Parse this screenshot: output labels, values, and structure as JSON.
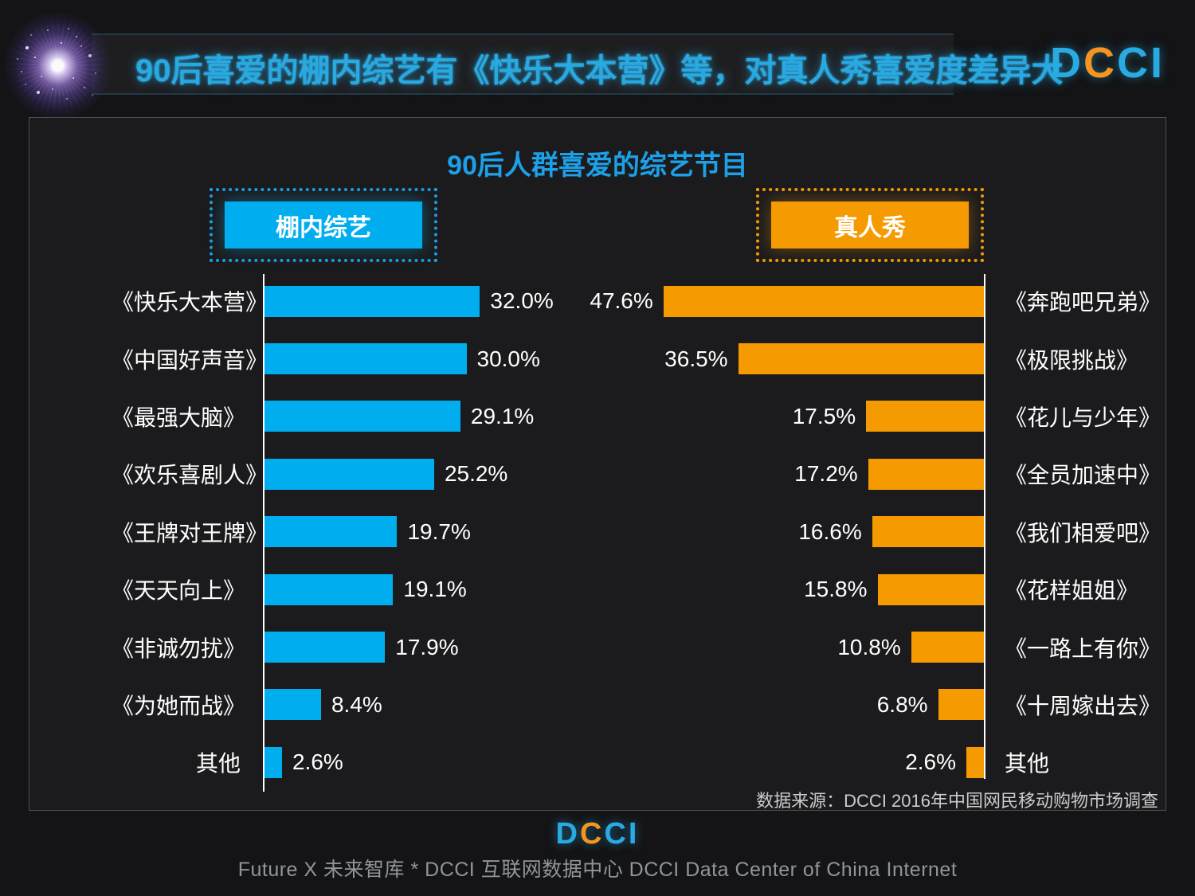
{
  "header": {
    "title": "90后喜爱的棚内综艺有《快乐大本营》等，对真人秀喜爱度差异大"
  },
  "brand": {
    "letters": [
      "D",
      "C",
      "C",
      "I"
    ],
    "letter_colors": [
      "#29abe2",
      "#f7941d",
      "#29abe2",
      "#29abe2"
    ]
  },
  "panel": {
    "source": "数据来源：DCCI 2016年中国网民移动购物市场调查"
  },
  "chart_data": {
    "type": "bar",
    "orientation": "horizontal",
    "title": "90后人群喜爱的综艺节目",
    "unit": "%",
    "value_label_format": "one-decimal-percent",
    "xlim": [
      0,
      50
    ],
    "grid": false,
    "series": [
      {
        "name": "棚内综艺",
        "color": "#00aeef",
        "side": "left",
        "categories": [
          "《快乐大本营》",
          "《中国好声音》",
          "《最强大脑》",
          "《欢乐喜剧人》",
          "《王牌对王牌》",
          "《天天向上》",
          "《非诚勿扰》",
          "《为她而战》",
          "其他"
        ],
        "values": [
          32.0,
          30.0,
          29.1,
          25.2,
          19.7,
          19.1,
          17.9,
          8.4,
          2.6
        ]
      },
      {
        "name": "真人秀",
        "color": "#f59a00",
        "side": "right",
        "categories": [
          "《奔跑吧兄弟》",
          "《极限挑战》",
          "《花儿与少年》",
          "《全员加速中》",
          "《我们相爱吧》",
          "《花样姐姐》",
          "《一路上有你》",
          "《十周嫁出去》",
          "其他"
        ],
        "values": [
          47.6,
          36.5,
          17.5,
          17.2,
          16.6,
          15.8,
          10.8,
          6.8,
          2.6
        ]
      }
    ]
  },
  "footer": {
    "tagline": "Future X 未来智库 * DCCI 互联网数据中心 DCCI Data Center of China Internet"
  }
}
